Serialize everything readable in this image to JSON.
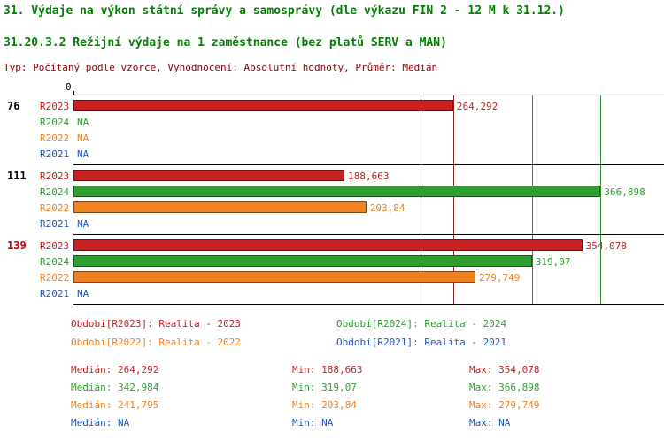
{
  "header": {
    "report_title": "31. Výdaje na výkon státní správy a samosprávy (dle výkazu FIN 2 - 12 M k 31.12.)",
    "meta": "Typ: Počítaný podle vzorce, Vyhodnocení: Absolutní hodnoty, Průměr: Medián"
  },
  "chart_data": {
    "type": "bar",
    "orientation": "horizontal",
    "title": "31.20.3.2 Režijní výdaje na 1 zaměstnance (bez platů SERV a MAN)",
    "x_axis_zero_label": "0",
    "x_max": 411,
    "series": [
      {
        "label": "R2023",
        "color": "#c62222",
        "legend": "Období[R2023]: Realita - 2023"
      },
      {
        "label": "R2024",
        "color": "#2e9e2e",
        "legend": "Období[R2024]: Realita - 2024"
      },
      {
        "label": "R2022",
        "color": "#ef8220",
        "legend": "Období[R2022]: Realita - 2022"
      },
      {
        "label": "R2021",
        "color": "#2255bb",
        "legend": "Období[R2021]: Realita - 2021"
      }
    ],
    "groups": [
      {
        "label": "76",
        "label_color": "#000000",
        "bars": [
          {
            "series": "R2023",
            "value": 264.292,
            "text": "264,292"
          },
          {
            "series": "R2024",
            "value": null,
            "text": "NA"
          },
          {
            "series": "R2022",
            "value": null,
            "text": "NA"
          },
          {
            "series": "R2021",
            "value": null,
            "text": "NA"
          }
        ]
      },
      {
        "label": "111",
        "label_color": "#000000",
        "bars": [
          {
            "series": "R2023",
            "value": 188.663,
            "text": "188,663"
          },
          {
            "series": "R2024",
            "value": 366.898,
            "text": "366,898"
          },
          {
            "series": "R2022",
            "value": 203.84,
            "text": "203,84"
          },
          {
            "series": "R2021",
            "value": null,
            "text": "NA"
          }
        ]
      },
      {
        "label": "139",
        "label_color": "#cc0000",
        "bars": [
          {
            "series": "R2023",
            "value": 354.078,
            "text": "354,078"
          },
          {
            "series": "R2024",
            "value": 319.07,
            "text": "319,07"
          },
          {
            "series": "R2022",
            "value": 279.749,
            "text": "279,749"
          },
          {
            "series": "R2021",
            "value": null,
            "text": "NA"
          }
        ]
      }
    ],
    "reference_lines": [
      {
        "value": 241.795,
        "color": "#cc7a00"
      },
      {
        "value": 264.292,
        "color": "#8b2222"
      },
      {
        "value": 319.07,
        "color": "#2e8b2e"
      },
      {
        "value": 366.898,
        "color": "#2e8b2e"
      }
    ],
    "stats": {
      "rows": [
        {
          "median": "Medián: 264,292",
          "min": "Min: 188,663",
          "max": "Max: 354,078"
        },
        {
          "median": "Medián: 342,984",
          "min": "Min: 319,07",
          "max": "Max: 366,898"
        },
        {
          "median": "Medián: 241,795",
          "min": "Min: 203,84",
          "max": "Max: 279,749"
        },
        {
          "median": "Medián: NA",
          "min": "Min: NA",
          "max": "Max: NA"
        }
      ]
    }
  }
}
